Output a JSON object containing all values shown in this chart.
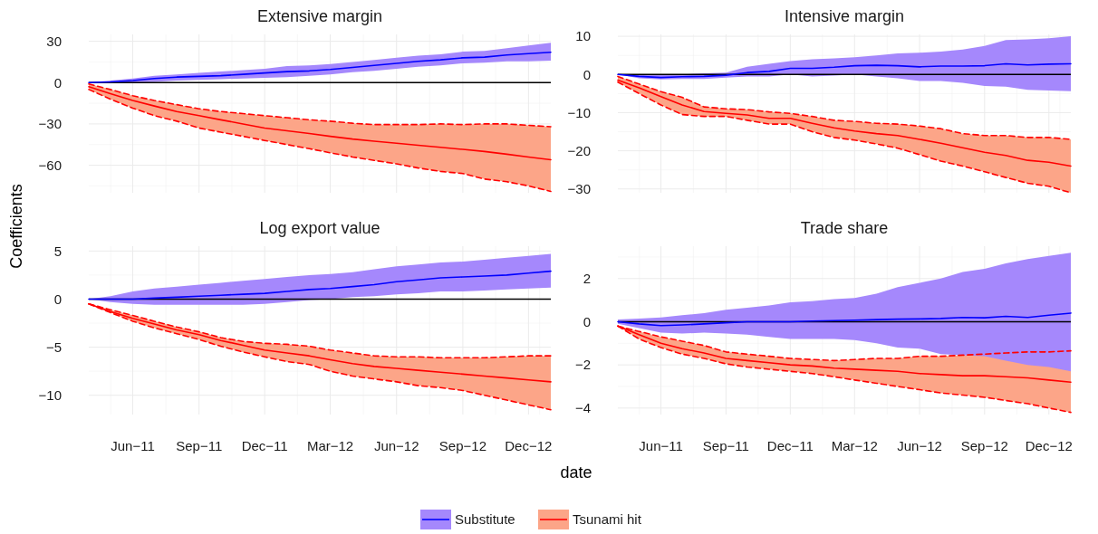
{
  "chart_data": [
    {
      "type": "line",
      "title": "Extensive margin",
      "ylabel": "Coefficients",
      "legend": "bottom",
      "tick_labels": "y",
      "grid": true,
      "x": [
        "2011-04",
        "2011-05",
        "2011-06",
        "2011-07",
        "2011-08",
        "2011-09",
        "2011-10",
        "2011-11",
        "2011-12",
        "2012-01",
        "2012-02",
        "2012-03",
        "2012-04",
        "2012-05",
        "2012-06",
        "2012-07",
        "2012-08",
        "2012-09",
        "2012-10",
        "2012-11",
        "2012-12",
        "2013-01"
      ],
      "xlim": [
        "2011-04",
        "2013-01"
      ],
      "xticks": [
        {
          "value": "2011-06",
          "label": null
        },
        {
          "value": "2011-09",
          "label": null
        },
        {
          "value": "2011-12",
          "label": null
        },
        {
          "value": "2012-03",
          "label": null
        },
        {
          "value": "2012-06",
          "label": null
        },
        {
          "value": "2012-09",
          "label": null
        },
        {
          "value": "2012-12",
          "label": null
        }
      ],
      "ylim": [
        -80,
        35
      ],
      "yticks": [
        {
          "value": 30,
          "label": "30"
        },
        {
          "value": 0,
          "label": "0"
        },
        {
          "value": -30,
          "label": "−30"
        },
        {
          "value": -60,
          "label": "−60"
        }
      ],
      "ref_lines": [
        {
          "axis": "y",
          "value": 0,
          "color": "#000000"
        }
      ],
      "series": [
        {
          "name": "Tsunami hit",
          "color": "#ff0000",
          "values": [
            -3,
            -8,
            -13,
            -17,
            -21,
            -24,
            -27,
            -30,
            -33,
            -35,
            -37,
            -39,
            -41,
            -42.5,
            -44,
            -45.5,
            -47,
            -48.5,
            -50,
            -52,
            -54,
            -56
          ],
          "lower": [
            -5,
            -12,
            -18.5,
            -24,
            -28,
            -33,
            -36,
            -39,
            -42,
            -45,
            -48,
            -51,
            -54,
            -56.5,
            -59,
            -62,
            -64.5,
            -66,
            -70,
            -72,
            -75,
            -79
          ],
          "upper": [
            -1,
            -5,
            -9.5,
            -13,
            -16,
            -19,
            -21,
            -22.5,
            -24,
            -25.5,
            -27,
            -28,
            -29.5,
            -30.5,
            -30.5,
            -30.5,
            -30,
            -30.5,
            -30,
            -30,
            -31,
            -32
          ]
        },
        {
          "name": "Substitute",
          "color": "#0000ff",
          "values": [
            0,
            0.5,
            1.5,
            3,
            4,
            4.5,
            5,
            6,
            7,
            8,
            8.5,
            9.5,
            11,
            12.5,
            14,
            15.5,
            16.5,
            18,
            18.5,
            20,
            21,
            22
          ],
          "lower": [
            0,
            -0.5,
            0,
            0.5,
            1.5,
            2,
            2.5,
            3,
            3.5,
            4,
            5,
            6,
            7.5,
            8.5,
            10,
            11.5,
            12.5,
            14,
            14.5,
            15.5,
            15.5,
            16
          ],
          "upper": [
            0,
            1.5,
            3,
            5,
            6,
            7,
            8,
            9,
            10,
            12,
            12.5,
            13.5,
            15,
            16.5,
            18,
            19.5,
            20.5,
            22.5,
            23,
            25,
            27,
            29
          ]
        },
        {
          "color": "#ff0000",
          "line_style": "dashed",
          "values": [
            -5,
            -12,
            -18.5,
            -24,
            -28,
            -33,
            -36,
            -39,
            -42,
            -45,
            -48,
            -51,
            -54,
            -56.5,
            -59,
            -62,
            -64.5,
            -66,
            -70,
            -72,
            -75,
            -79
          ]
        },
        {
          "color": "#ff0000",
          "line_style": "dashed",
          "values": [
            -1,
            -5,
            -9.5,
            -13,
            -16,
            -19,
            -21,
            -22.5,
            -24,
            -25.5,
            -27,
            -28,
            -29.5,
            -30.5,
            -30.5,
            -30.5,
            -30,
            -30.5,
            -30,
            -30,
            -31,
            -32
          ]
        }
      ]
    },
    {
      "type": "line",
      "title": "Intensive margin",
      "tick_labels": "y",
      "grid": true,
      "x": [
        "2011-04",
        "2011-05",
        "2011-06",
        "2011-07",
        "2011-08",
        "2011-09",
        "2011-10",
        "2011-11",
        "2011-12",
        "2012-01",
        "2012-02",
        "2012-03",
        "2012-04",
        "2012-05",
        "2012-06",
        "2012-07",
        "2012-08",
        "2012-09",
        "2012-10",
        "2012-11",
        "2012-12",
        "2013-01"
      ],
      "xlim": [
        "2011-04",
        "2013-01"
      ],
      "xticks": [
        {
          "value": "2011-06",
          "label": null
        },
        {
          "value": "2011-09",
          "label": null
        },
        {
          "value": "2011-12",
          "label": null
        },
        {
          "value": "2012-03",
          "label": null
        },
        {
          "value": "2012-06",
          "label": null
        },
        {
          "value": "2012-09",
          "label": null
        },
        {
          "value": "2012-12",
          "label": null
        }
      ],
      "ylim": [
        -31,
        10.5
      ],
      "yticks": [
        {
          "value": 10,
          "label": "10"
        },
        {
          "value": 0,
          "label": "0"
        },
        {
          "value": -10,
          "label": "−10"
        },
        {
          "value": -20,
          "label": "−20"
        },
        {
          "value": -30,
          "label": "−30"
        }
      ],
      "ref_lines": [
        {
          "axis": "y",
          "value": 0,
          "color": "#000000"
        }
      ],
      "series": [
        {
          "color": "#ff0000",
          "values": [
            -1.5,
            -3.5,
            -5.8,
            -8,
            -9.7,
            -10.2,
            -10.6,
            -11.5,
            -11.5,
            -12.8,
            -14,
            -14.8,
            -15.5,
            -16,
            -17,
            -18,
            -19.2,
            -20.4,
            -21.2,
            -22.5,
            -23,
            -24
          ],
          "lower": [
            -2,
            -5,
            -8,
            -10.5,
            -11,
            -11,
            -12,
            -13,
            -13,
            -15,
            -16.5,
            -17.2,
            -18.2,
            -19.3,
            -21,
            -22.7,
            -24,
            -25.5,
            -27,
            -28.5,
            -29.3,
            -31
          ],
          "upper": [
            -0.5,
            -2.5,
            -4.5,
            -6,
            -8.5,
            -9,
            -9.2,
            -9.8,
            -10.2,
            -11,
            -12,
            -12.3,
            -12.8,
            -13,
            -13.5,
            -14.2,
            -15.5,
            -16,
            -16,
            -16.5,
            -16.5,
            -17
          ]
        },
        {
          "color": "#0000ff",
          "values": [
            0,
            -0.5,
            -0.8,
            -0.6,
            -0.5,
            -0.2,
            0.5,
            0.8,
            1.6,
            1.6,
            1.9,
            2.3,
            2.4,
            2.3,
            2,
            2.2,
            2.2,
            2.3,
            2.8,
            2.5,
            2.7,
            2.8
          ],
          "lower": [
            0,
            -1,
            -1.3,
            -1.2,
            -1.2,
            -0.8,
            -0.5,
            -0.5,
            0,
            -0.5,
            -0.3,
            0,
            -0.5,
            -1,
            -1.7,
            -1.7,
            -2.2,
            -3,
            -3.2,
            -4,
            -4.2,
            -4.4
          ],
          "upper": [
            0,
            0,
            0,
            0,
            0.3,
            0.5,
            2,
            2.8,
            3.5,
            4,
            4.2,
            4.5,
            5,
            5.5,
            5.7,
            6,
            6.5,
            7.5,
            9,
            9.2,
            9.5,
            10
          ]
        },
        {
          "color": "#ff0000",
          "line_style": "dashed",
          "values": [
            -2,
            -5,
            -8,
            -10.5,
            -11,
            -11,
            -12,
            -13,
            -13,
            -15,
            -16.5,
            -17.2,
            -18.2,
            -19.3,
            -21,
            -22.7,
            -24,
            -25.5,
            -27,
            -28.5,
            -29.3,
            -31
          ]
        },
        {
          "color": "#ff0000",
          "line_style": "dashed",
          "values": [
            -0.5,
            -2.5,
            -4.5,
            -6,
            -8.5,
            -9,
            -9.2,
            -9.8,
            -10.2,
            -11,
            -12,
            -12.3,
            -12.8,
            -13,
            -13.5,
            -14.2,
            -15.5,
            -16,
            -16,
            -16.5,
            -16.5,
            -17
          ]
        }
      ]
    },
    {
      "type": "line",
      "title": "Log export value",
      "xlabel": "date",
      "grid": true,
      "x": [
        "2011-04",
        "2011-05",
        "2011-06",
        "2011-07",
        "2011-08",
        "2011-09",
        "2011-10",
        "2011-11",
        "2011-12",
        "2012-01",
        "2012-02",
        "2012-03",
        "2012-04",
        "2012-05",
        "2012-06",
        "2012-07",
        "2012-08",
        "2012-09",
        "2012-10",
        "2012-11",
        "2012-12",
        "2013-01"
      ],
      "xlim": [
        "2011-04",
        "2013-01"
      ],
      "xticks": [
        {
          "value": "2011-06",
          "label": "Jun−11"
        },
        {
          "value": "2011-09",
          "label": "Sep−11"
        },
        {
          "value": "2011-12",
          "label": "Dec−11"
        },
        {
          "value": "2012-03",
          "label": "Mar−12"
        },
        {
          "value": "2012-06",
          "label": "Jun−12"
        },
        {
          "value": "2012-09",
          "label": "Sep−12"
        },
        {
          "value": "2012-12",
          "label": "Dec−12"
        }
      ],
      "ylim": [
        -12,
        5.5
      ],
      "yticks": [
        {
          "value": 5,
          "label": "5"
        },
        {
          "value": 0,
          "label": "0"
        },
        {
          "value": -5,
          "label": "−5"
        },
        {
          "value": -10,
          "label": "−10"
        }
      ],
      "ref_lines": [
        {
          "axis": "y",
          "value": 0,
          "color": "#000000"
        }
      ],
      "series": [
        {
          "color": "#ff0000",
          "values": [
            -0.5,
            -1.3,
            -2,
            -2.6,
            -3.2,
            -3.7,
            -4.3,
            -4.8,
            -5.3,
            -5.6,
            -5.9,
            -6.3,
            -6.7,
            -7,
            -7.2,
            -7.4,
            -7.6,
            -7.8,
            -8,
            -8.2,
            -8.4,
            -8.6
          ],
          "lower": [
            -0.5,
            -1.4,
            -2.3,
            -3,
            -3.6,
            -4.2,
            -4.9,
            -5.5,
            -6,
            -6.5,
            -6.8,
            -7.5,
            -8,
            -8.3,
            -8.6,
            -9,
            -9.2,
            -9.5,
            -10,
            -10.5,
            -11,
            -11.5
          ],
          "upper": [
            -0.5,
            -1.1,
            -1.7,
            -2.3,
            -2.9,
            -3.4,
            -4,
            -4.4,
            -4.6,
            -4.7,
            -4.9,
            -5.3,
            -5.6,
            -5.9,
            -6,
            -6,
            -6.1,
            -6.1,
            -6.1,
            -6,
            -5.9,
            -5.9
          ]
        },
        {
          "color": "#0000ff",
          "values": [
            0,
            0,
            0,
            0.1,
            0.2,
            0.3,
            0.4,
            0.5,
            0.6,
            0.8,
            1,
            1.1,
            1.3,
            1.5,
            1.8,
            2,
            2.2,
            2.3,
            2.4,
            2.5,
            2.7,
            2.9
          ],
          "lower": [
            0,
            -0.3,
            -0.5,
            -0.6,
            -0.6,
            -0.6,
            -0.6,
            -0.6,
            -0.5,
            -0.3,
            -0.1,
            0,
            0.2,
            0.3,
            0.5,
            0.6,
            0.8,
            0.8,
            0.9,
            1,
            1.1,
            1.2
          ],
          "upper": [
            0,
            0.3,
            0.8,
            1.1,
            1.3,
            1.5,
            1.7,
            1.9,
            2.1,
            2.3,
            2.5,
            2.6,
            2.8,
            3.1,
            3.4,
            3.6,
            3.8,
            3.9,
            4.1,
            4.3,
            4.5,
            4.7
          ]
        },
        {
          "color": "#ff0000",
          "line_style": "dashed",
          "values": [
            -0.5,
            -1.4,
            -2.3,
            -3,
            -3.6,
            -4.2,
            -4.9,
            -5.5,
            -6,
            -6.5,
            -6.8,
            -7.5,
            -8,
            -8.3,
            -8.6,
            -9,
            -9.2,
            -9.5,
            -10,
            -10.5,
            -11,
            -11.5
          ]
        },
        {
          "color": "#ff0000",
          "line_style": "dashed",
          "values": [
            -0.5,
            -1.1,
            -1.7,
            -2.3,
            -2.9,
            -3.4,
            -4,
            -4.4,
            -4.6,
            -4.7,
            -4.9,
            -5.3,
            -5.6,
            -5.9,
            -6,
            -6,
            -6.1,
            -6.1,
            -6.1,
            -6,
            -5.9,
            -5.9
          ]
        }
      ]
    },
    {
      "type": "line",
      "title": "Trade share",
      "grid": true,
      "x": [
        "2011-04",
        "2011-05",
        "2011-06",
        "2011-07",
        "2011-08",
        "2011-09",
        "2011-10",
        "2011-11",
        "2011-12",
        "2012-01",
        "2012-02",
        "2012-03",
        "2012-04",
        "2012-05",
        "2012-06",
        "2012-07",
        "2012-08",
        "2012-09",
        "2012-10",
        "2012-11",
        "2012-12",
        "2013-01"
      ],
      "xlim": [
        "2011-04",
        "2013-01"
      ],
      "xticks": [
        {
          "value": "2011-06",
          "label": "Jun−11"
        },
        {
          "value": "2011-09",
          "label": "Sep−11"
        },
        {
          "value": "2011-12",
          "label": "Dec−11"
        },
        {
          "value": "2012-03",
          "label": "Mar−12"
        },
        {
          "value": "2012-06",
          "label": "Jun−12"
        },
        {
          "value": "2012-09",
          "label": "Sep−12"
        },
        {
          "value": "2012-12",
          "label": "Dec−12"
        }
      ],
      "ylim": [
        -4.3,
        3.5
      ],
      "yticks": [
        {
          "value": 2,
          "label": "2"
        },
        {
          "value": 0,
          "label": "0"
        },
        {
          "value": -2,
          "label": "−2"
        },
        {
          "value": -4,
          "label": "−4"
        }
      ],
      "ref_lines": [
        {
          "axis": "y",
          "value": 0,
          "color": "#000000"
        }
      ],
      "series": [
        {
          "color": "#ff0000",
          "values": [
            -0.2,
            -0.6,
            -1,
            -1.25,
            -1.45,
            -1.7,
            -1.8,
            -1.9,
            -2,
            -2.05,
            -2.15,
            -2.2,
            -2.25,
            -2.3,
            -2.4,
            -2.45,
            -2.5,
            -2.5,
            -2.55,
            -2.6,
            -2.7,
            -2.8
          ],
          "lower": [
            -0.2,
            -0.8,
            -1.2,
            -1.5,
            -1.7,
            -1.95,
            -2.1,
            -2.2,
            -2.3,
            -2.4,
            -2.55,
            -2.7,
            -2.85,
            -3,
            -3.15,
            -3.3,
            -3.4,
            -3.5,
            -3.65,
            -3.8,
            -4,
            -4.2
          ],
          "upper": [
            -0.2,
            -0.45,
            -0.7,
            -0.9,
            -1.1,
            -1.4,
            -1.5,
            -1.6,
            -1.7,
            -1.75,
            -1.8,
            -1.75,
            -1.7,
            -1.7,
            -1.6,
            -1.6,
            -1.55,
            -1.5,
            -1.45,
            -1.4,
            -1.4,
            -1.35
          ]
        },
        {
          "color": "#0000ff",
          "values": [
            0,
            -0.1,
            -0.18,
            -0.15,
            -0.1,
            -0.05,
            0,
            0,
            0,
            0.03,
            0.05,
            0.07,
            0.1,
            0.12,
            0.13,
            0.15,
            0.2,
            0.18,
            0.25,
            0.2,
            0.3,
            0.4
          ],
          "lower": [
            -0.1,
            -0.3,
            -0.5,
            -0.55,
            -0.5,
            -0.55,
            -0.6,
            -0.7,
            -0.8,
            -0.8,
            -0.8,
            -0.85,
            -1,
            -1.2,
            -1.25,
            -1.5,
            -1.55,
            -1.6,
            -1.8,
            -2,
            -2.1,
            -2.3
          ],
          "upper": [
            0.1,
            0.15,
            0.2,
            0.3,
            0.4,
            0.55,
            0.65,
            0.75,
            0.9,
            0.95,
            1.05,
            1.1,
            1.3,
            1.6,
            1.8,
            2,
            2.3,
            2.45,
            2.7,
            2.9,
            3.05,
            3.2
          ]
        },
        {
          "color": "#ff0000",
          "line_style": "dashed",
          "values": [
            -0.2,
            -0.8,
            -1.2,
            -1.5,
            -1.7,
            -1.95,
            -2.1,
            -2.2,
            -2.3,
            -2.4,
            -2.55,
            -2.7,
            -2.85,
            -3,
            -3.15,
            -3.3,
            -3.4,
            -3.5,
            -3.65,
            -3.8,
            -4,
            -4.2
          ]
        },
        {
          "color": "#ff0000",
          "line_style": "dashed",
          "values": [
            -0.2,
            -0.45,
            -0.7,
            -0.9,
            -1.1,
            -1.4,
            -1.5,
            -1.6,
            -1.7,
            -1.75,
            -1.8,
            -1.75,
            -1.7,
            -1.7,
            -1.6,
            -1.6,
            -1.55,
            -1.5,
            -1.45,
            -1.4,
            -1.4,
            -1.35
          ]
        }
      ]
    }
  ]
}
